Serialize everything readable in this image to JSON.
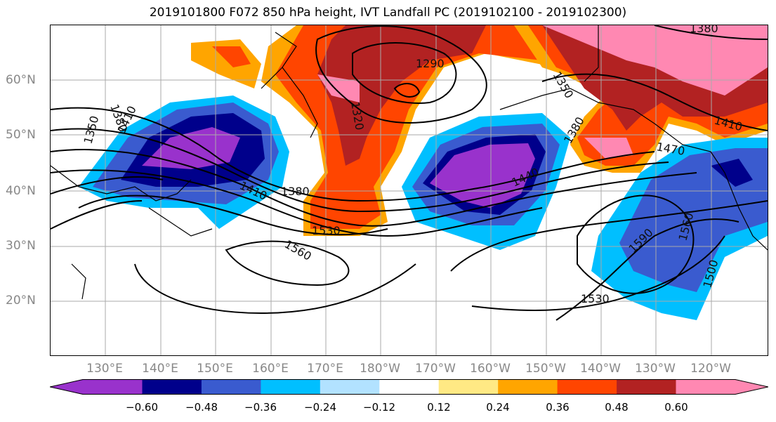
{
  "title": "2019101800 F072 850 hPa height, IVT Landfall PC (2019102100 - 2019102300)",
  "lat_labels": [
    "60°N",
    "50°N",
    "40°N",
    "30°N",
    "20°N"
  ],
  "lon_labels": [
    "130°E",
    "140°E",
    "150°E",
    "160°E",
    "170°E",
    "180°W",
    "170°W",
    "160°W",
    "150°W",
    "140°W",
    "130°W",
    "120°W"
  ],
  "colorbar": {
    "colors": [
      "#9932CC",
      "#00008B",
      "#3A5BCF",
      "#00BFFF",
      "#B2E2FF",
      "#FFFFFF",
      "#FFE984",
      "#FFA500",
      "#FF4500",
      "#B22222",
      "#FF88B2"
    ],
    "ticks": [
      "−0.60",
      "−0.48",
      "−0.36",
      "−0.24",
      "−0.12",
      "0.12",
      "0.24",
      "0.36",
      "0.48",
      "0.60"
    ]
  },
  "contour_labels": [
    "1290",
    "1320",
    "1350",
    "1350",
    "1380",
    "1380",
    "1380",
    "1380",
    "1410",
    "1410",
    "1410",
    "1440",
    "1470",
    "1500",
    "1530",
    "1530",
    "1560",
    "1560",
    "1590"
  ]
}
